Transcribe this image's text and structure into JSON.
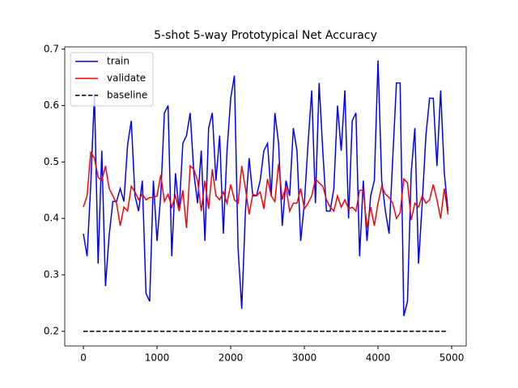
{
  "chart_data": {
    "type": "line",
    "title": "5-shot 5-way Prototypical Net Accuracy",
    "xlim": [
      -253,
      5197
    ],
    "ylim": [
      0.174,
      0.704
    ],
    "xticks": [
      0,
      1000,
      2000,
      3000,
      4000,
      5000
    ],
    "yticks": [
      0.2,
      0.3,
      0.4,
      0.5,
      0.6,
      0.7
    ],
    "legend": "upper left",
    "series": [
      {
        "name": "train",
        "color": "#0000ff",
        "style": "solid",
        "x": [
          0,
          50,
          100,
          150,
          200,
          250,
          300,
          350,
          400,
          450,
          500,
          550,
          600,
          650,
          700,
          750,
          800,
          850,
          900,
          950,
          1000,
          1050,
          1100,
          1150,
          1200,
          1250,
          1300,
          1350,
          1400,
          1450,
          1500,
          1550,
          1600,
          1650,
          1700,
          1750,
          1800,
          1850,
          1900,
          1950,
          2000,
          2050,
          2100,
          2150,
          2200,
          2250,
          2300,
          2350,
          2400,
          2450,
          2500,
          2550,
          2600,
          2650,
          2700,
          2750,
          2800,
          2850,
          2900,
          2950,
          3000,
          3050,
          3100,
          3150,
          3200,
          3250,
          3300,
          3350,
          3400,
          3450,
          3500,
          3550,
          3600,
          3650,
          3700,
          3750,
          3800,
          3850,
          3900,
          3950,
          4000,
          4050,
          4100,
          4150,
          4200,
          4250,
          4300,
          4350,
          4400,
          4450,
          4500,
          4550,
          4600,
          4650,
          4700,
          4750,
          4800,
          4850,
          4900,
          4950
        ],
        "values": [
          0.373,
          0.333,
          0.46,
          0.62,
          0.32,
          0.52,
          0.28,
          0.37,
          0.43,
          0.43,
          0.453,
          0.43,
          0.53,
          0.573,
          0.44,
          0.413,
          0.467,
          0.267,
          0.253,
          0.467,
          0.36,
          0.44,
          0.587,
          0.6,
          0.333,
          0.48,
          0.413,
          0.533,
          0.547,
          0.587,
          0.48,
          0.427,
          0.52,
          0.36,
          0.56,
          0.587,
          0.467,
          0.547,
          0.373,
          0.52,
          0.613,
          0.653,
          0.347,
          0.24,
          0.413,
          0.507,
          0.44,
          0.44,
          0.467,
          0.52,
          0.533,
          0.44,
          0.587,
          0.533,
          0.387,
          0.467,
          0.44,
          0.56,
          0.52,
          0.36,
          0.427,
          0.533,
          0.627,
          0.427,
          0.64,
          0.52,
          0.413,
          0.413,
          0.453,
          0.6,
          0.52,
          0.627,
          0.4,
          0.573,
          0.587,
          0.333,
          0.467,
          0.36,
          0.44,
          0.467,
          0.68,
          0.467,
          0.413,
          0.373,
          0.507,
          0.64,
          0.64,
          0.227,
          0.253,
          0.48,
          0.56,
          0.32,
          0.427,
          0.547,
          0.613,
          0.613,
          0.493,
          0.627,
          0.48,
          0.413
        ]
      },
      {
        "name": "validate",
        "color": "#ff0000",
        "style": "solid",
        "x": [
          0,
          50,
          100,
          150,
          200,
          250,
          300,
          350,
          400,
          450,
          500,
          550,
          600,
          650,
          700,
          750,
          800,
          850,
          900,
          950,
          1000,
          1050,
          1100,
          1150,
          1200,
          1250,
          1300,
          1350,
          1400,
          1450,
          1500,
          1550,
          1600,
          1650,
          1700,
          1750,
          1800,
          1850,
          1900,
          1950,
          2000,
          2050,
          2100,
          2150,
          2200,
          2250,
          2300,
          2350,
          2400,
          2450,
          2500,
          2550,
          2600,
          2650,
          2700,
          2750,
          2800,
          2850,
          2900,
          2950,
          3000,
          3050,
          3100,
          3150,
          3200,
          3250,
          3300,
          3350,
          3400,
          3450,
          3500,
          3550,
          3600,
          3650,
          3700,
          3750,
          3800,
          3850,
          3900,
          3950,
          4000,
          4050,
          4100,
          4150,
          4200,
          4250,
          4300,
          4350,
          4400,
          4450,
          4500,
          4550,
          4600,
          4650,
          4700,
          4750,
          4800,
          4850,
          4900,
          4950
        ],
        "values": [
          0.42,
          0.44,
          0.517,
          0.507,
          0.473,
          0.467,
          0.493,
          0.453,
          0.44,
          0.427,
          0.387,
          0.42,
          0.413,
          0.457,
          0.447,
          0.433,
          0.443,
          0.433,
          0.437,
          0.437,
          0.44,
          0.477,
          0.43,
          0.443,
          0.42,
          0.44,
          0.413,
          0.45,
          0.383,
          0.493,
          0.487,
          0.467,
          0.413,
          0.467,
          0.417,
          0.487,
          0.44,
          0.433,
          0.447,
          0.427,
          0.46,
          0.433,
          0.427,
          0.493,
          0.453,
          0.407,
          0.443,
          0.44,
          0.447,
          0.417,
          0.47,
          0.44,
          0.43,
          0.497,
          0.433,
          0.457,
          0.413,
          0.427,
          0.427,
          0.453,
          0.417,
          0.427,
          0.44,
          0.47,
          0.463,
          0.457,
          0.433,
          0.42,
          0.413,
          0.44,
          0.42,
          0.433,
          0.417,
          0.42,
          0.413,
          0.45,
          0.45,
          0.383,
          0.42,
          0.387,
          0.427,
          0.457,
          0.443,
          0.437,
          0.427,
          0.4,
          0.41,
          0.47,
          0.463,
          0.397,
          0.427,
          0.42,
          0.44,
          0.427,
          0.433,
          0.46,
          0.433,
          0.4,
          0.453,
          0.407
        ]
      },
      {
        "name": "baseline",
        "color": "#000000",
        "style": "dashed",
        "x": [
          0,
          4950
        ],
        "values": [
          0.2,
          0.2
        ]
      }
    ]
  }
}
